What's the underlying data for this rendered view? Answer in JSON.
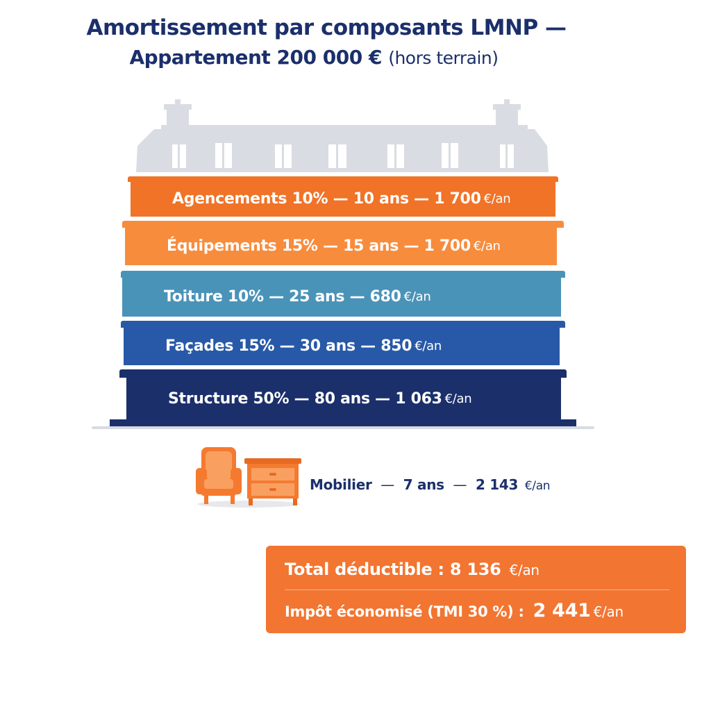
{
  "title": {
    "line1": "Amortissement par composants LMNP —",
    "line2_bold": "Appartement 200 000 €",
    "line2_normal": "(hors terrain)"
  },
  "components": [
    {
      "name": "Agencements",
      "percent": "10%",
      "duration": "10 ans",
      "amount": "1 700",
      "unit": "€/an",
      "color": "#f07327"
    },
    {
      "name": "Équipements",
      "percent": "15%",
      "duration": "15 ans",
      "amount": "1 700",
      "unit": "€/an",
      "color": "#f78c3d"
    },
    {
      "name": "Toiture",
      "percent": "10%",
      "duration": "25 ans",
      "amount": "680",
      "unit": "€/an",
      "color": "#4a93b8"
    },
    {
      "name": "Façades",
      "percent": "15%",
      "duration": "30 ans",
      "amount": "850",
      "unit": "€/an",
      "color": "#2859a8"
    },
    {
      "name": "Structure",
      "percent": "50%",
      "duration": "80 ans",
      "amount": "1 063",
      "unit": "€/an",
      "color": "#1b2f6b"
    }
  ],
  "mobilier": {
    "name": "Mobilier",
    "duration": "7 ans",
    "amount": "2 143",
    "unit": "€/an"
  },
  "totals": {
    "deductible_label": "Total déductible :",
    "deductible_value": "8 136",
    "tax_label": "Impôt économisé (TMI 30 %) :",
    "tax_value": "2 441",
    "unit": "€/an"
  }
}
